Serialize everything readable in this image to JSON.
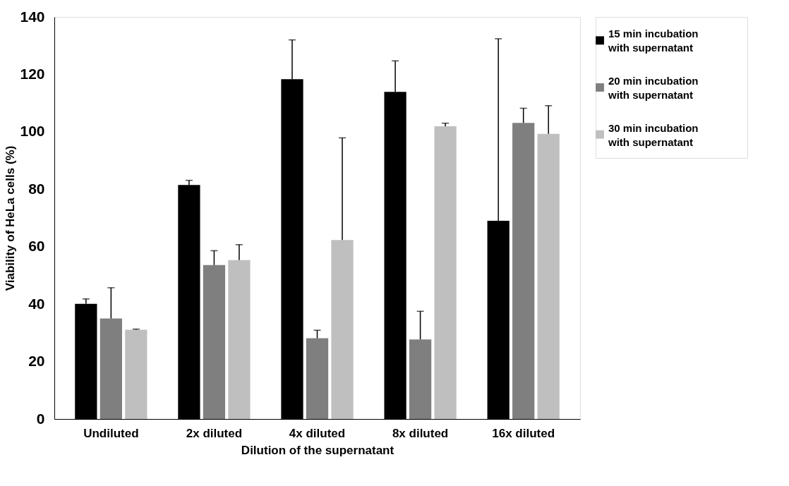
{
  "chart_data": {
    "type": "bar",
    "xlabel": "Dilution of the supernatant",
    "ylabel": "Viability of HeLa cells (%)",
    "categories": [
      "Undiluted",
      "2x diluted",
      "4x diluted",
      "8x diluted",
      "16x diluted"
    ],
    "series": [
      {
        "name": "15 min incubation with supernatant",
        "color": "#000000",
        "values": [
          40.1,
          81.5,
          118.3,
          113.9,
          69.0
        ],
        "errors": [
          [
            40.1,
            41.8
          ],
          [
            81.5,
            83.1
          ],
          [
            118.3,
            132.0
          ],
          [
            113.9,
            124.7
          ],
          [
            69.0,
            132.4
          ]
        ]
      },
      {
        "name": "20 min incubation with supernatant",
        "color": "#7f7f7f",
        "values": [
          35.0,
          53.6,
          28.1,
          27.7,
          103.1
        ],
        "errors": [
          [
            35.0,
            45.7
          ],
          [
            53.6,
            58.6
          ],
          [
            28.1,
            30.9
          ],
          [
            27.7,
            37.5
          ],
          [
            103.1,
            108.2
          ]
        ]
      },
      {
        "name": "30 min incubation with supernatant",
        "color": "#bfbfbf",
        "values": [
          31.1,
          55.3,
          62.3,
          101.9,
          99.3
        ],
        "errors": [
          [
            31.1,
            31.3
          ],
          [
            55.3,
            60.7
          ],
          [
            62.3,
            97.9
          ],
          [
            101.9,
            103.0
          ],
          [
            99.3,
            109.1
          ]
        ]
      }
    ],
    "ylim": [
      0,
      140
    ],
    "yticks": [
      0,
      20,
      40,
      60,
      80,
      100,
      120,
      140
    ],
    "grid": false,
    "legend": "right"
  }
}
